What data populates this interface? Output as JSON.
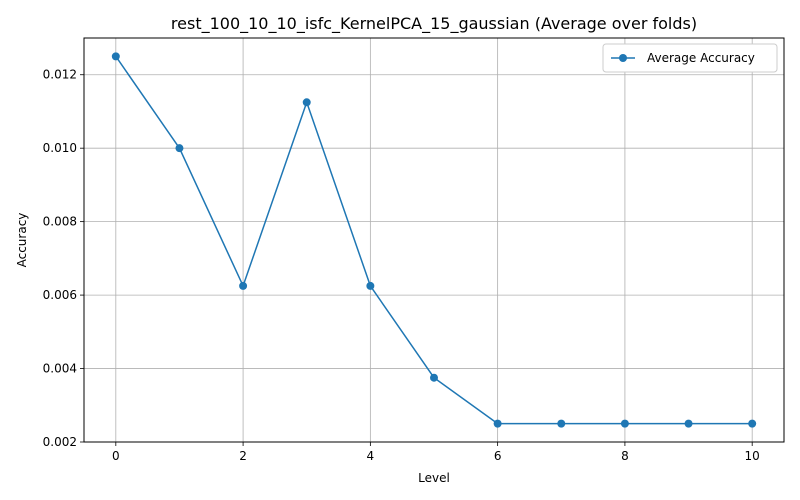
{
  "chart_data": {
    "type": "line",
    "title": "rest_100_10_10_isfc_KernelPCA_15_gaussian (Average over folds)",
    "xlabel": "Level",
    "ylabel": "Accuracy",
    "xlim": [
      -0.5,
      10.5
    ],
    "ylim": [
      0.002,
      0.013
    ],
    "xticks": [
      0,
      2,
      4,
      6,
      8,
      10
    ],
    "xtick_labels": [
      "0",
      "2",
      "4",
      "6",
      "8",
      "10"
    ],
    "yticks": [
      0.002,
      0.004,
      0.006,
      0.008,
      0.01,
      0.012
    ],
    "ytick_labels": [
      "0.002",
      "0.004",
      "0.006",
      "0.008",
      "0.010",
      "0.012"
    ],
    "grid": true,
    "legend_position": "top-right",
    "series": [
      {
        "name": "Average Accuracy",
        "color": "#1f77b4",
        "marker": "circle",
        "x": [
          0,
          1,
          2,
          3,
          4,
          5,
          6,
          7,
          8,
          9,
          10
        ],
        "y": [
          0.0125,
          0.01,
          0.00625,
          0.01125,
          0.00625,
          0.00375,
          0.0025,
          0.0025,
          0.0025,
          0.0025,
          0.0025
        ]
      }
    ]
  }
}
